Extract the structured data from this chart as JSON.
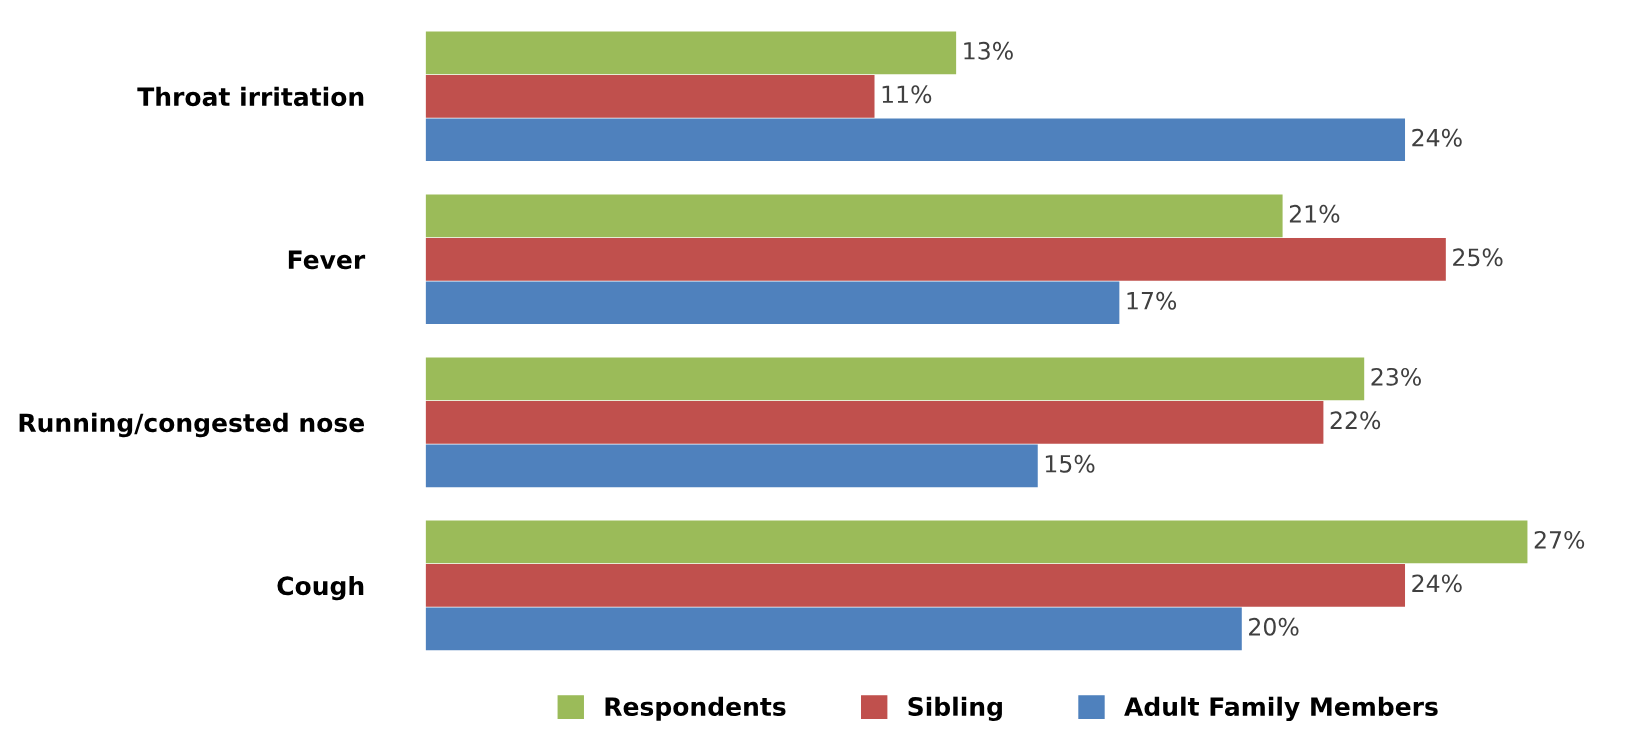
{
  "chart_data": {
    "type": "bar",
    "orientation": "horizontal",
    "categories": [
      "Throat irritation",
      "Fever",
      "Running/congested nose",
      "Cough"
    ],
    "series": [
      {
        "name": "Respondents",
        "color": "#9bbb59",
        "values": [
          13,
          21,
          23,
          27
        ],
        "value_labels": [
          "13%",
          "21%",
          "23%",
          "27%"
        ]
      },
      {
        "name": "Sibling",
        "color": "#c0504d",
        "values": [
          11,
          25,
          22,
          24
        ],
        "value_labels": [
          "11%",
          "25%",
          "22%",
          "24%"
        ]
      },
      {
        "name": "Adult Family Members",
        "color": "#4f81bd",
        "values": [
          24,
          17,
          15,
          20
        ],
        "value_labels": [
          "24%",
          "17%",
          "15%",
          "20%"
        ]
      }
    ],
    "tick_labels": "y",
    "grid": false,
    "legend": "bottom"
  }
}
